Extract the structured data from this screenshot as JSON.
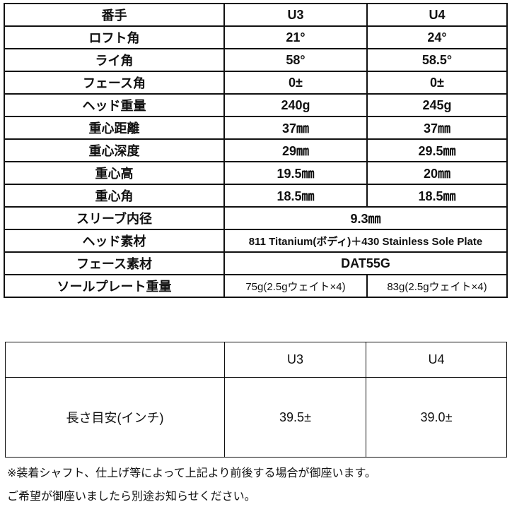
{
  "spec_table": {
    "header": [
      "番手",
      "U3",
      "U4"
    ],
    "rows": [
      [
        "ロフト角",
        "21°",
        "24°"
      ],
      [
        "ライ角",
        "58°",
        "58.5°"
      ],
      [
        "フェース角",
        "0±",
        "0±"
      ],
      [
        "ヘッド重量",
        "240g",
        "245g"
      ],
      [
        "重心距離",
        "37㎜",
        "37㎜"
      ],
      [
        "重心深度",
        "29㎜",
        "29.5㎜"
      ],
      [
        "重心高",
        "19.5㎜",
        "20㎜"
      ],
      [
        "重心角",
        "18.5㎜",
        "18.5㎜"
      ]
    ],
    "merged_rows": [
      [
        "スリーブ内径",
        "9.3㎜"
      ],
      [
        "ヘッド素材",
        "811 Titanium(ボディ)＋430 Stainless Sole Plate"
      ],
      [
        "フェース素材",
        "DAT55G"
      ]
    ],
    "sole_row": [
      "ソールプレート重量",
      "75g(2.5gウェイト×4)",
      "83g(2.5gウェイト×4)"
    ]
  },
  "length_table": {
    "header": [
      "",
      "U3",
      "U4"
    ],
    "row": [
      "長さ目安(インチ)",
      "39.5±",
      "39.0±"
    ]
  },
  "notes": [
    "※装着シャフト、仕上げ等によって上記より前後する場合が御座います。",
    "ご希望が御座いましたら別途お知らせください。"
  ]
}
